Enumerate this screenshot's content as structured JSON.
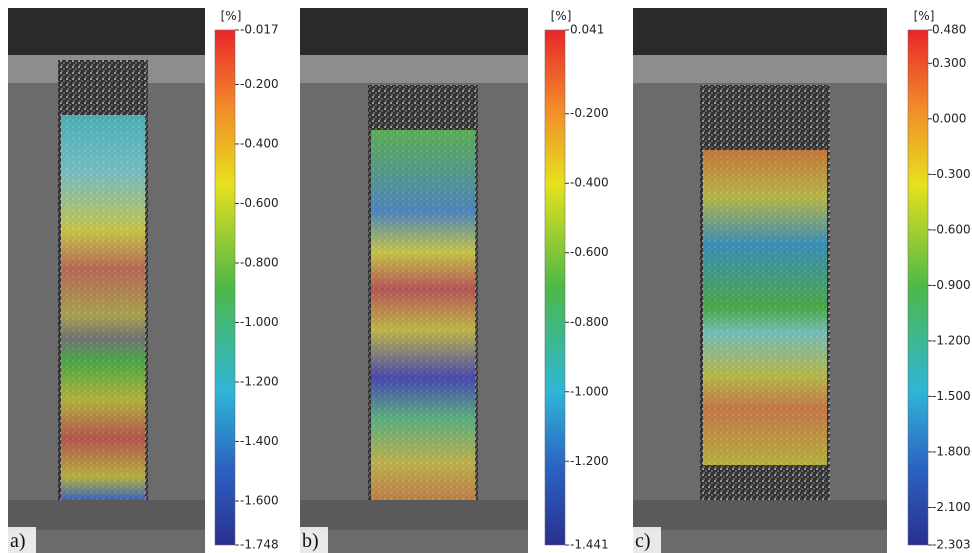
{
  "panels": [
    {
      "label": "a)",
      "unit": "[%]",
      "ticks": [
        "-0.017",
        "-0.200",
        "-0.400",
        "-0.600",
        "-0.800",
        "-1.000",
        "-1.200",
        "-1.400",
        "-1.600",
        "-1.748"
      ]
    },
    {
      "label": "b)",
      "unit": "[%]",
      "ticks": [
        "0.041",
        "-0.200",
        "-0.400",
        "-0.600",
        "-0.800",
        "-1.000",
        "-1.200",
        "-1.441"
      ]
    },
    {
      "label": "c)",
      "unit": "[%]",
      "ticks": [
        "0.480",
        "0.300",
        "0.000",
        "-0.300",
        "-0.600",
        "-0.900",
        "-1.200",
        "-1.500",
        "-1.800",
        "-2.100",
        "-2.303"
      ]
    }
  ]
}
